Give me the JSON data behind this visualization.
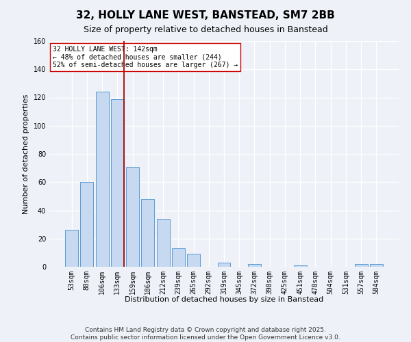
{
  "title": "32, HOLLY LANE WEST, BANSTEAD, SM7 2BB",
  "subtitle": "Size of property relative to detached houses in Banstead",
  "bar_labels": [
    "53sqm",
    "80sqm",
    "106sqm",
    "133sqm",
    "159sqm",
    "186sqm",
    "212sqm",
    "239sqm",
    "265sqm",
    "292sqm",
    "319sqm",
    "345sqm",
    "372sqm",
    "398sqm",
    "425sqm",
    "451sqm",
    "478sqm",
    "504sqm",
    "531sqm",
    "557sqm",
    "584sqm"
  ],
  "bar_values": [
    26,
    60,
    124,
    119,
    71,
    48,
    34,
    13,
    9,
    0,
    3,
    0,
    2,
    0,
    0,
    1,
    0,
    0,
    0,
    2,
    2
  ],
  "bar_color": "#c6d9f0",
  "bar_edge_color": "#5b9bd5",
  "ylabel": "Number of detached properties",
  "xlabel": "Distribution of detached houses by size in Banstead",
  "ylim": [
    0,
    160
  ],
  "yticks": [
    0,
    20,
    40,
    60,
    80,
    100,
    120,
    140,
    160
  ],
  "vline_color": "#aa0000",
  "annotation_title": "32 HOLLY LANE WEST: 142sqm",
  "annotation_line1": "← 48% of detached houses are smaller (244)",
  "annotation_line2": "52% of semi-detached houses are larger (267) →",
  "footer_line1": "Contains HM Land Registry data © Crown copyright and database right 2025.",
  "footer_line2": "Contains public sector information licensed under the Open Government Licence v3.0.",
  "bg_color": "#eef2f8",
  "grid_color": "#ffffff",
  "title_fontsize": 11,
  "subtitle_fontsize": 9,
  "axis_label_fontsize": 8,
  "tick_fontsize": 7,
  "footer_fontsize": 6.5,
  "ann_fontsize": 7
}
